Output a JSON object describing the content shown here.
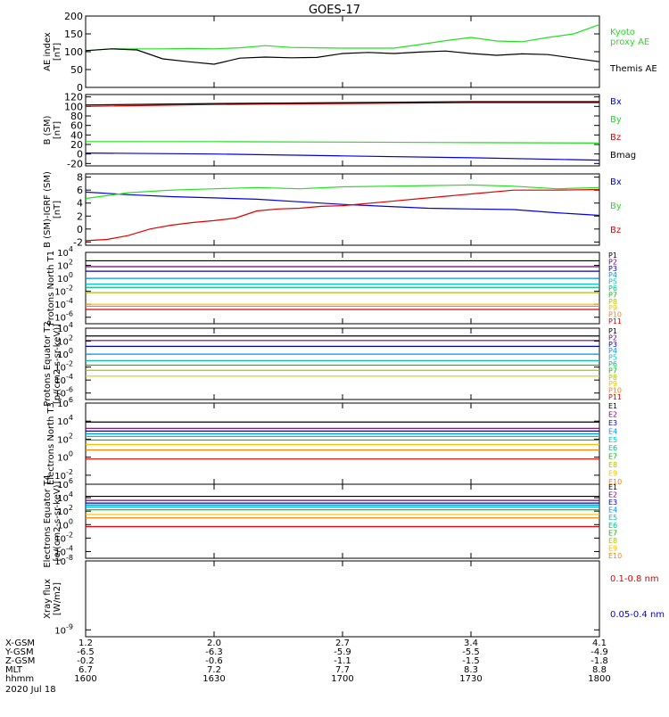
{
  "title": "GOES-17",
  "date_label": "2020 Jul 18",
  "colors": {
    "black": "#000000",
    "red": "#e00000",
    "green": "#20e020",
    "blue": "#0000e0",
    "p_colors": [
      "#000000",
      "#700070",
      "#0000c0",
      "#0090ff",
      "#00c0c0",
      "#00c080",
      "#00c000",
      "#b0c000",
      "#f0c000",
      "#ff8000",
      "#e00000",
      "#c00000"
    ]
  },
  "x_axis": {
    "ticks": [
      1600,
      1630,
      1700,
      1730,
      1800
    ],
    "tick_labels": [
      "1600",
      "1630",
      "1700",
      "1730",
      "1800"
    ],
    "row_labels": [
      "X-GSM",
      "Y-GSM",
      "Z-GSM",
      "MLT",
      "hhmm"
    ],
    "rows": [
      [
        "1.2",
        "2.0",
        "2.7",
        "3.4",
        "4.1"
      ],
      [
        "-6.5",
        "-6.3",
        "-5.9",
        "-5.5",
        "-4.9"
      ],
      [
        "-0.2",
        "-0.6",
        "-1.1",
        "-1.5",
        "-1.8"
      ],
      [
        "6.7",
        "7.2",
        "7.7",
        "8.3",
        "8.8"
      ],
      [
        "1600",
        "1630",
        "1700",
        "1730",
        "1800"
      ]
    ]
  },
  "chart_data": [
    {
      "id": "ae",
      "type": "line",
      "ylabel": "AE index [nT]",
      "ylim": [
        0,
        200
      ],
      "yticks": [
        0,
        50,
        100,
        150,
        200
      ],
      "ytick_labels": [
        "0",
        "50",
        "100",
        "150",
        "200"
      ],
      "log": false,
      "series": [
        {
          "name": "Kyoto proxy AE",
          "color": "green",
          "x": [
            0,
            6,
            12,
            18,
            24,
            30,
            36,
            42,
            48,
            54,
            60,
            66,
            72,
            78,
            84,
            90,
            96,
            102,
            108,
            114,
            120
          ],
          "y": [
            103,
            108,
            108,
            108,
            109,
            108,
            111,
            117,
            112,
            111,
            110,
            110,
            110,
            120,
            131,
            140,
            130,
            128,
            140,
            150,
            176
          ]
        },
        {
          "name": "Themis AE",
          "color": "black",
          "x": [
            0,
            6,
            12,
            18,
            24,
            30,
            36,
            42,
            48,
            54,
            60,
            66,
            72,
            78,
            84,
            90,
            96,
            102,
            108,
            114,
            120
          ],
          "y": [
            103,
            108,
            105,
            80,
            72,
            65,
            82,
            85,
            83,
            84,
            95,
            98,
            95,
            99,
            102,
            95,
            90,
            94,
            92,
            82,
            72
          ]
        }
      ],
      "legend": [
        "Kyoto proxy AE",
        "Themis AE"
      ]
    },
    {
      "id": "bsm",
      "type": "line",
      "ylabel": "B (SM) [nT]",
      "ylim": [
        -25,
        125
      ],
      "yticks": [
        -20,
        0,
        20,
        40,
        60,
        80,
        100,
        120
      ],
      "ytick_labels": [
        "-20",
        "0",
        "20",
        "40",
        "60",
        "80",
        "100",
        "120"
      ],
      "log": false,
      "series": [
        {
          "name": "Bx",
          "color": "blue",
          "x": [
            0,
            30,
            60,
            90,
            120
          ],
          "y": [
            2,
            0,
            -4,
            -8,
            -13
          ]
        },
        {
          "name": "By",
          "color": "green",
          "x": [
            0,
            30,
            60,
            90,
            120
          ],
          "y": [
            26,
            26,
            25,
            24,
            23
          ]
        },
        {
          "name": "Bz",
          "color": "red",
          "x": [
            0,
            30,
            60,
            90,
            120
          ],
          "y": [
            100,
            104,
            106,
            108,
            108
          ]
        },
        {
          "name": "Bmag",
          "color": "black",
          "x": [
            0,
            30,
            60,
            90,
            120
          ],
          "y": [
            103,
            106,
            108,
            110,
            110
          ]
        }
      ],
      "legend": [
        "Bx",
        "By",
        "Bz",
        "Bmag"
      ]
    },
    {
      "id": "bigrf",
      "type": "line",
      "ylabel": "B (SM)-IGRF (SM) [nT]",
      "ylim": [
        -2.5,
        8.5
      ],
      "yticks": [
        -2,
        0,
        2,
        4,
        6,
        8
      ],
      "ytick_labels": [
        "-2",
        "0",
        "2",
        "4",
        "6",
        "8"
      ],
      "log": false,
      "series": [
        {
          "name": "Bx",
          "color": "blue",
          "x": [
            0,
            10,
            20,
            30,
            40,
            50,
            60,
            70,
            80,
            90,
            100,
            110,
            120
          ],
          "y": [
            5.7,
            5.3,
            5.0,
            4.8,
            4.6,
            4.2,
            3.8,
            3.5,
            3.2,
            3.1,
            3.0,
            2.5,
            2.1
          ]
        },
        {
          "name": "By",
          "color": "green",
          "x": [
            0,
            10,
            20,
            30,
            40,
            50,
            60,
            70,
            80,
            90,
            100,
            110,
            120
          ],
          "y": [
            4.7,
            5.6,
            6.0,
            6.2,
            6.4,
            6.2,
            6.5,
            6.6,
            6.7,
            6.8,
            6.6,
            6.2,
            6.4
          ]
        },
        {
          "name": "Bz",
          "color": "red",
          "x": [
            0,
            5,
            10,
            15,
            20,
            25,
            30,
            35,
            40,
            45,
            50,
            55,
            60,
            70,
            80,
            90,
            100,
            110,
            120
          ],
          "y": [
            -1.8,
            -1.6,
            -1.0,
            0.0,
            0.6,
            1.0,
            1.3,
            1.7,
            2.8,
            3.1,
            3.2,
            3.5,
            3.6,
            4.2,
            4.8,
            5.4,
            6.0,
            6.0,
            6.1
          ]
        }
      ],
      "legend": [
        "Bx",
        "By",
        "Bz"
      ]
    },
    {
      "id": "pn",
      "type": "line",
      "ylabel": "Protons North T1",
      "ylim_exp": [
        -7,
        4
      ],
      "yticks_exp": [
        -6,
        -4,
        -2,
        0,
        2,
        4
      ],
      "ytick_labels": [
        "10",
        "10",
        "10",
        "10",
        "10",
        "10"
      ],
      "ytick_sups": [
        "-6",
        "-4",
        "-2",
        "0",
        "2",
        "4"
      ],
      "log": true,
      "series": [
        {
          "name": "P1",
          "color_index": 0,
          "log10": 2.7
        },
        {
          "name": "P2",
          "color_index": 1,
          "log10": 1.8
        },
        {
          "name": "P3",
          "color_index": 2,
          "log10": 1.1
        },
        {
          "name": "P4",
          "color_index": 3,
          "log10": 0.0
        },
        {
          "name": "P5",
          "color_index": 4,
          "log10": -0.9
        },
        {
          "name": "P6",
          "color_index": 5,
          "log10": -1.4
        },
        {
          "name": "P7",
          "color_index": 7,
          "log10": -2.2
        },
        {
          "name": "P8",
          "color_index": 8,
          "log10": -4.0
        },
        {
          "name": "P9",
          "color_index": 9,
          "log10": -4.3
        },
        {
          "name": "P10",
          "color_index": 10,
          "log10": -4.8
        }
      ],
      "legend": [
        "P1",
        "P2",
        "P3",
        "P4",
        "P5",
        "P6",
        "P7",
        "P8",
        "P9",
        "P10",
        "P11"
      ]
    },
    {
      "id": "pe",
      "type": "line",
      "ylabel": "Protons Equator T2 [p/(cm2-s-sr-keV)]",
      "ylim_exp": [
        -7,
        4
      ],
      "yticks_exp": [
        -6,
        -4,
        -2,
        0,
        2,
        4
      ],
      "ytick_labels": [
        "10",
        "10",
        "10",
        "10",
        "10",
        "10"
      ],
      "ytick_sups": [
        "-6",
        "-4",
        "-2",
        "0",
        "2",
        "4"
      ],
      "log": true,
      "series": [
        {
          "name": "P1",
          "color_index": 0,
          "log10": 2.8
        },
        {
          "name": "P2",
          "color_index": 1,
          "log10": 2.1
        },
        {
          "name": "P3",
          "color_index": 2,
          "log10": 1.2
        },
        {
          "name": "P4",
          "color_index": 3,
          "log10": 0.0
        },
        {
          "name": "P5",
          "color_index": 4,
          "log10": -1.0
        },
        {
          "name": "P6",
          "color_index": 6,
          "log10": -1.7
        },
        {
          "name": "P7",
          "color_index": 7,
          "log10": -2.5
        },
        {
          "name": "P8",
          "color_index": 8,
          "log10": -3.4
        }
      ],
      "legend": [
        "P1",
        "P2",
        "P3",
        "P4",
        "P5",
        "P6",
        "P7",
        "P8",
        "P9",
        "P10",
        "P11"
      ]
    },
    {
      "id": "en",
      "type": "line",
      "ylabel": "Electrons North T3",
      "ylim_exp": [
        -3,
        6
      ],
      "yticks_exp": [
        -2,
        0,
        2,
        4,
        6
      ],
      "ytick_labels": [
        "10",
        "10",
        "10",
        "10",
        "10"
      ],
      "ytick_sups": [
        "-2",
        "0",
        "2",
        "4",
        "6"
      ],
      "log": true,
      "series": [
        {
          "name": "E1",
          "color_index": 0,
          "log10": 3.9
        },
        {
          "name": "E2",
          "color_index": 1,
          "log10": 3.2
        },
        {
          "name": "E3",
          "color_index": 2,
          "log10": 2.9
        },
        {
          "name": "E4",
          "color_index": 3,
          "log10": 2.6
        },
        {
          "name": "E5",
          "color_index": 4,
          "log10": 2.3
        },
        {
          "name": "E6",
          "color_index": 6,
          "log10": 1.9
        },
        {
          "name": "E7",
          "color_index": 8,
          "log10": 1.4
        },
        {
          "name": "E8",
          "color_index": 9,
          "log10": 0.8
        },
        {
          "name": "E9",
          "color_index": 10,
          "log10": -0.2
        }
      ],
      "legend": [
        "E1",
        "E2",
        "E3",
        "E4",
        "E5",
        "E6",
        "E7",
        "E8",
        "E9",
        "E10"
      ]
    },
    {
      "id": "ee",
      "type": "line",
      "ylabel": "Electrons Equator T4 [e/(cm2-s-sr-keV)]",
      "ylim_exp": [
        -5,
        6
      ],
      "yticks_exp": [
        -4,
        -2,
        0,
        2,
        4,
        6
      ],
      "ytick_labels": [
        "10",
        "10",
        "10",
        "10",
        "10",
        "10"
      ],
      "ytick_sups": [
        "-4",
        "-2",
        "0",
        "2",
        "4",
        "6"
      ],
      "log": true,
      "series": [
        {
          "name": "E1",
          "color_index": 0,
          "log10": 4.2
        },
        {
          "name": "E2",
          "color_index": 1,
          "log10": 3.6
        },
        {
          "name": "E3",
          "color_index": 2,
          "log10": 3.2
        },
        {
          "name": "E4",
          "color_index": 3,
          "log10": 2.9
        },
        {
          "name": "E5",
          "color_index": 4,
          "log10": 2.6
        },
        {
          "name": "E6",
          "color_index": 6,
          "log10": 2.2
        },
        {
          "name": "E7",
          "color_index": 8,
          "log10": 1.5
        },
        {
          "name": "E8",
          "color_index": 9,
          "log10": 1.0
        },
        {
          "name": "E9",
          "color_index": 10,
          "log10": -0.3
        }
      ],
      "legend": [
        "E1",
        "E2",
        "E3",
        "E4",
        "E5",
        "E6",
        "E7",
        "E8",
        "E9",
        "E10"
      ]
    },
    {
      "id": "xray",
      "type": "line",
      "ylabel": "Xray flux [W/m2]",
      "ylim_exp": [
        -9.1,
        -8
      ],
      "yticks_exp": [
        -9,
        -8
      ],
      "ytick_labels": [
        "10",
        "10"
      ],
      "ytick_sups": [
        "-9",
        "-8"
      ],
      "log": true,
      "series": [
        {
          "name": "0.1-0.8 nm",
          "color": "red"
        },
        {
          "name": "0.05-0.4 nm",
          "color": "blue"
        }
      ],
      "legend": [
        "0.1-0.8 nm",
        "0.05-0.4 nm"
      ]
    }
  ]
}
